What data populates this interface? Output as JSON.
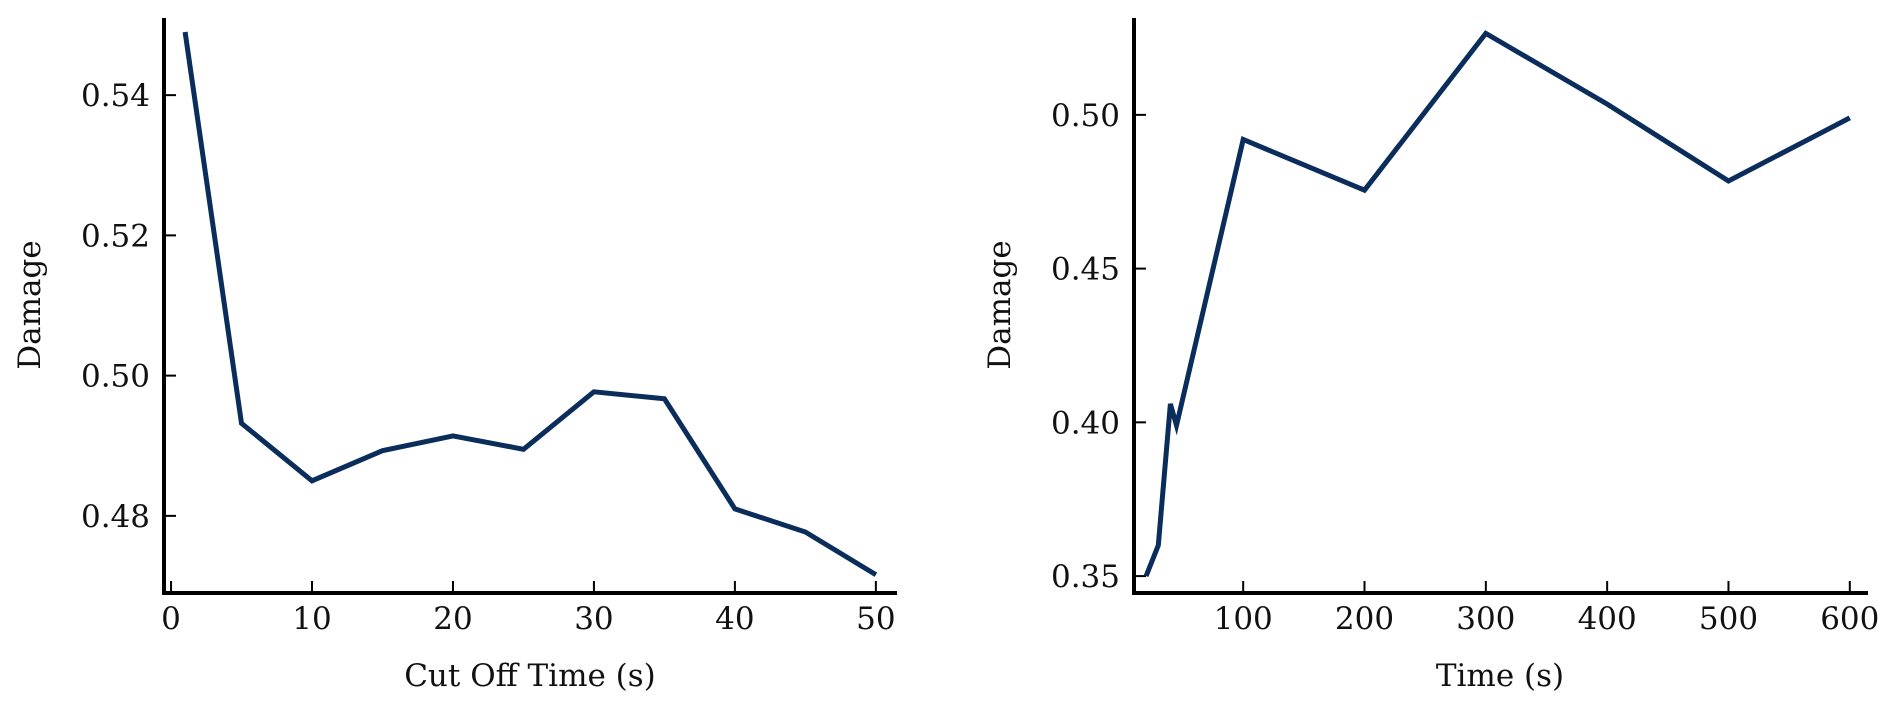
{
  "colors": {
    "series": "#0b2d5c",
    "axis": "#000000"
  },
  "chart_data": [
    {
      "type": "line",
      "title": "",
      "xlabel": "Cut Off Time (s)",
      "ylabel": "Damage",
      "xlim": [
        -0.5,
        51.5
      ],
      "ylim": [
        0.469,
        0.551
      ],
      "xticks": [
        0,
        10,
        20,
        30,
        40,
        50
      ],
      "xtick_labels": [
        "0",
        "10",
        "20",
        "30",
        "40",
        "50"
      ],
      "yticks": [
        0.48,
        0.5,
        0.52,
        0.54
      ],
      "ytick_labels": [
        "0.48",
        "0.50",
        "0.52",
        "0.54"
      ],
      "grid": false,
      "legend": "none",
      "series": [
        {
          "x": [
            1,
            5,
            10,
            15,
            20,
            25,
            30,
            35,
            40,
            45,
            50
          ],
          "y": [
            0.549,
            0.4932,
            0.485,
            0.4893,
            0.4914,
            0.4895,
            0.4977,
            0.4967,
            0.481,
            0.4777,
            0.4716
          ]
        }
      ]
    },
    {
      "type": "line",
      "title": "",
      "xlabel": "Time (s)",
      "ylabel": "Damage",
      "xlim": [
        10,
        615
      ],
      "ylim": [
        0.3445,
        0.5315
      ],
      "xticks": [
        100,
        200,
        300,
        400,
        500,
        600
      ],
      "xtick_labels": [
        "100",
        "200",
        "300",
        "400",
        "500",
        "600"
      ],
      "yticks": [
        0.35,
        0.4,
        0.45,
        0.5
      ],
      "ytick_labels": [
        "0.35",
        "0.40",
        "0.45",
        "0.50"
      ],
      "grid": false,
      "legend": "none",
      "series": [
        {
          "x": [
            20,
            30,
            40,
            45,
            100,
            200,
            300,
            400,
            500,
            600
          ],
          "y": [
            0.35,
            0.36,
            0.406,
            0.399,
            0.492,
            0.4755,
            0.5265,
            0.5035,
            0.4785,
            0.499
          ]
        }
      ]
    }
  ]
}
